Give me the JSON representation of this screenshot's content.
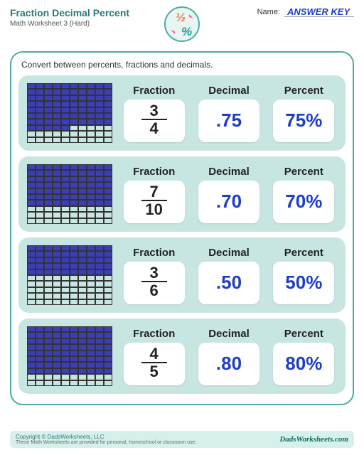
{
  "header": {
    "title": "Fraction Decimal Percent",
    "subtitle": "Math Worksheet 3 (Hard)",
    "name_label": "Name:",
    "answer_key": "ANSWER KEY"
  },
  "instruction": "Convert between percents, fractions and decimals.",
  "labels": {
    "fraction": "Fraction",
    "decimal": "Decimal",
    "percent": "Percent"
  },
  "colors": {
    "teal_border": "#4caca4",
    "row_bg": "#c8e6e1",
    "grid_fill": "#3b3eb5",
    "value_blue": "#1d3ec7",
    "footer_bg": "#d6f0eb"
  },
  "rows": [
    {
      "numerator": "3",
      "denominator": "4",
      "decimal": ".75",
      "percent": "75%",
      "grid_rows": 10,
      "grid_cols": 10,
      "filled": 75
    },
    {
      "numerator": "7",
      "denominator": "10",
      "decimal": ".70",
      "percent": "70%",
      "grid_rows": 10,
      "grid_cols": 10,
      "filled": 70
    },
    {
      "numerator": "3",
      "denominator": "6",
      "decimal": ".50",
      "percent": "50%",
      "grid_rows": 10,
      "grid_cols": 10,
      "filled": 50
    },
    {
      "numerator": "4",
      "denominator": "5",
      "decimal": ".80",
      "percent": "80%",
      "grid_rows": 10,
      "grid_cols": 10,
      "filled": 80
    }
  ],
  "footer": {
    "copyright": "Copyright © DadsWorksheets, LLC",
    "note": "These Math Worksheets are provided for personal, homeschool or classroom use.",
    "url": "DadsWorksheets.com"
  }
}
